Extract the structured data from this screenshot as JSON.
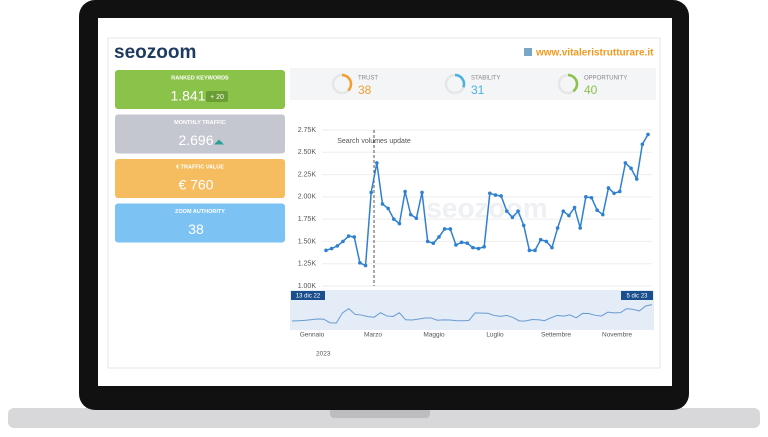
{
  "header": {
    "logo": "seozoom",
    "site": "www.vitaleristrutturare.it"
  },
  "cards": [
    {
      "label": "RANKED KEYWORDS",
      "value": "1.841",
      "badge": "+ 20",
      "color": "#8bc34a"
    },
    {
      "label": "MONTHLY TRAFFIC",
      "value": "2.696",
      "color": "#c4c7cf"
    },
    {
      "label": "€ TRAFFIC VALUE",
      "value": "€ 760",
      "color": "#f5bd5f"
    },
    {
      "label": "ZOOM AUTHORITY",
      "value": "38",
      "color": "#7cc3f4"
    }
  ],
  "metrics": [
    {
      "label": "TRUST",
      "value": 38,
      "color": "#f0a030"
    },
    {
      "label": "STABILITY",
      "value": 31,
      "color": "#4ab0e0"
    },
    {
      "label": "OPPORTUNITY",
      "value": 40,
      "color": "#8bc34a"
    }
  ],
  "chart_data": {
    "type": "line",
    "annotation": "Search volumes update",
    "color": "#2f80d0",
    "values": [
      1400,
      1420,
      1450,
      1500,
      1560,
      1550,
      1260,
      1230,
      2050,
      2380,
      1920,
      1870,
      1750,
      1700,
      2060,
      1800,
      1760,
      2050,
      1500,
      1480,
      1550,
      1640,
      1640,
      1460,
      1490,
      1480,
      1430,
      1420,
      1440,
      2040,
      2020,
      2010,
      1840,
      1770,
      1840,
      1680,
      1400,
      1400,
      1520,
      1500,
      1430,
      1650,
      1840,
      1790,
      1880,
      1650,
      2000,
      1990,
      1850,
      1800,
      2100,
      2040,
      2060,
      2380,
      2320,
      2200,
      2590,
      2700
    ],
    "ylim": [
      1000,
      2750
    ],
    "yticks": [
      {
        "value": 1000,
        "label": "1.00K"
      },
      {
        "value": 1250,
        "label": "1.25K"
      },
      {
        "value": 1500,
        "label": "1.50K"
      },
      {
        "value": 1750,
        "label": "1.75K"
      },
      {
        "value": 2000,
        "label": "2.00K"
      },
      {
        "value": 2250,
        "label": "2.25K"
      },
      {
        "value": 2500,
        "label": "2.50K"
      },
      {
        "value": 2750,
        "label": "2.75K"
      }
    ],
    "grid": true,
    "navigator": {
      "start": "13 dic 22",
      "end": "5 dic 23",
      "months": [
        "Gennaio",
        "Marzo",
        "Maggio",
        "Luglio",
        "Settembre",
        "Novembre"
      ],
      "year": "2023"
    }
  }
}
